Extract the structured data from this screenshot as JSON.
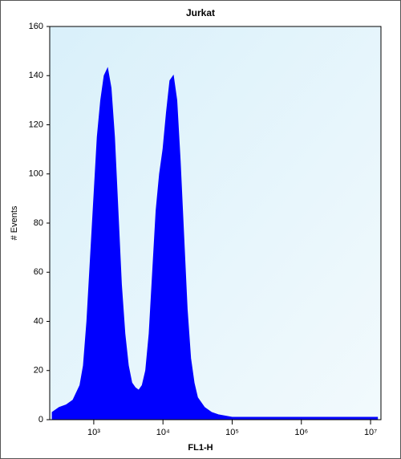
{
  "chart_data": {
    "type": "area",
    "title": "Jurkat",
    "x_label": "FL1-H",
    "y_label": "# Events",
    "x": [
      251,
      316,
      398,
      501,
      631,
      708,
      794,
      891,
      1000,
      1122,
      1259,
      1413,
      1585,
      1778,
      1995,
      2239,
      2512,
      2818,
      3162,
      3548,
      3981,
      4467,
      5012,
      5623,
      6310,
      7079,
      7943,
      8913,
      10000,
      11220,
      12589,
      14125,
      15849,
      17783,
      19953,
      22387,
      25119,
      28184,
      31623,
      39811,
      50119,
      63096,
      100000,
      1000000,
      12589254
    ],
    "values": [
      3,
      5,
      6,
      8,
      14,
      22,
      40,
      65,
      90,
      115,
      130,
      140,
      143,
      135,
      115,
      85,
      55,
      35,
      22,
      15,
      13,
      12,
      14,
      20,
      35,
      60,
      85,
      100,
      110,
      125,
      138,
      140,
      130,
      105,
      75,
      45,
      25,
      15,
      9,
      5,
      3,
      2,
      1,
      1,
      1
    ],
    "color": "#0000ff",
    "xscale": "log",
    "xlim": [
      231,
      14125375
    ],
    "xticks": [
      {
        "value": 1000,
        "label": "10³"
      },
      {
        "value": 10000,
        "label": "10⁴"
      },
      {
        "value": 100000,
        "label": "10⁵"
      },
      {
        "value": 1000000,
        "label": "10⁶"
      },
      {
        "value": 10000000,
        "label": "10⁷"
      }
    ],
    "ylim": [
      0,
      160
    ],
    "yticks": [
      0,
      20,
      40,
      60,
      80,
      100,
      120,
      140,
      160
    ]
  }
}
